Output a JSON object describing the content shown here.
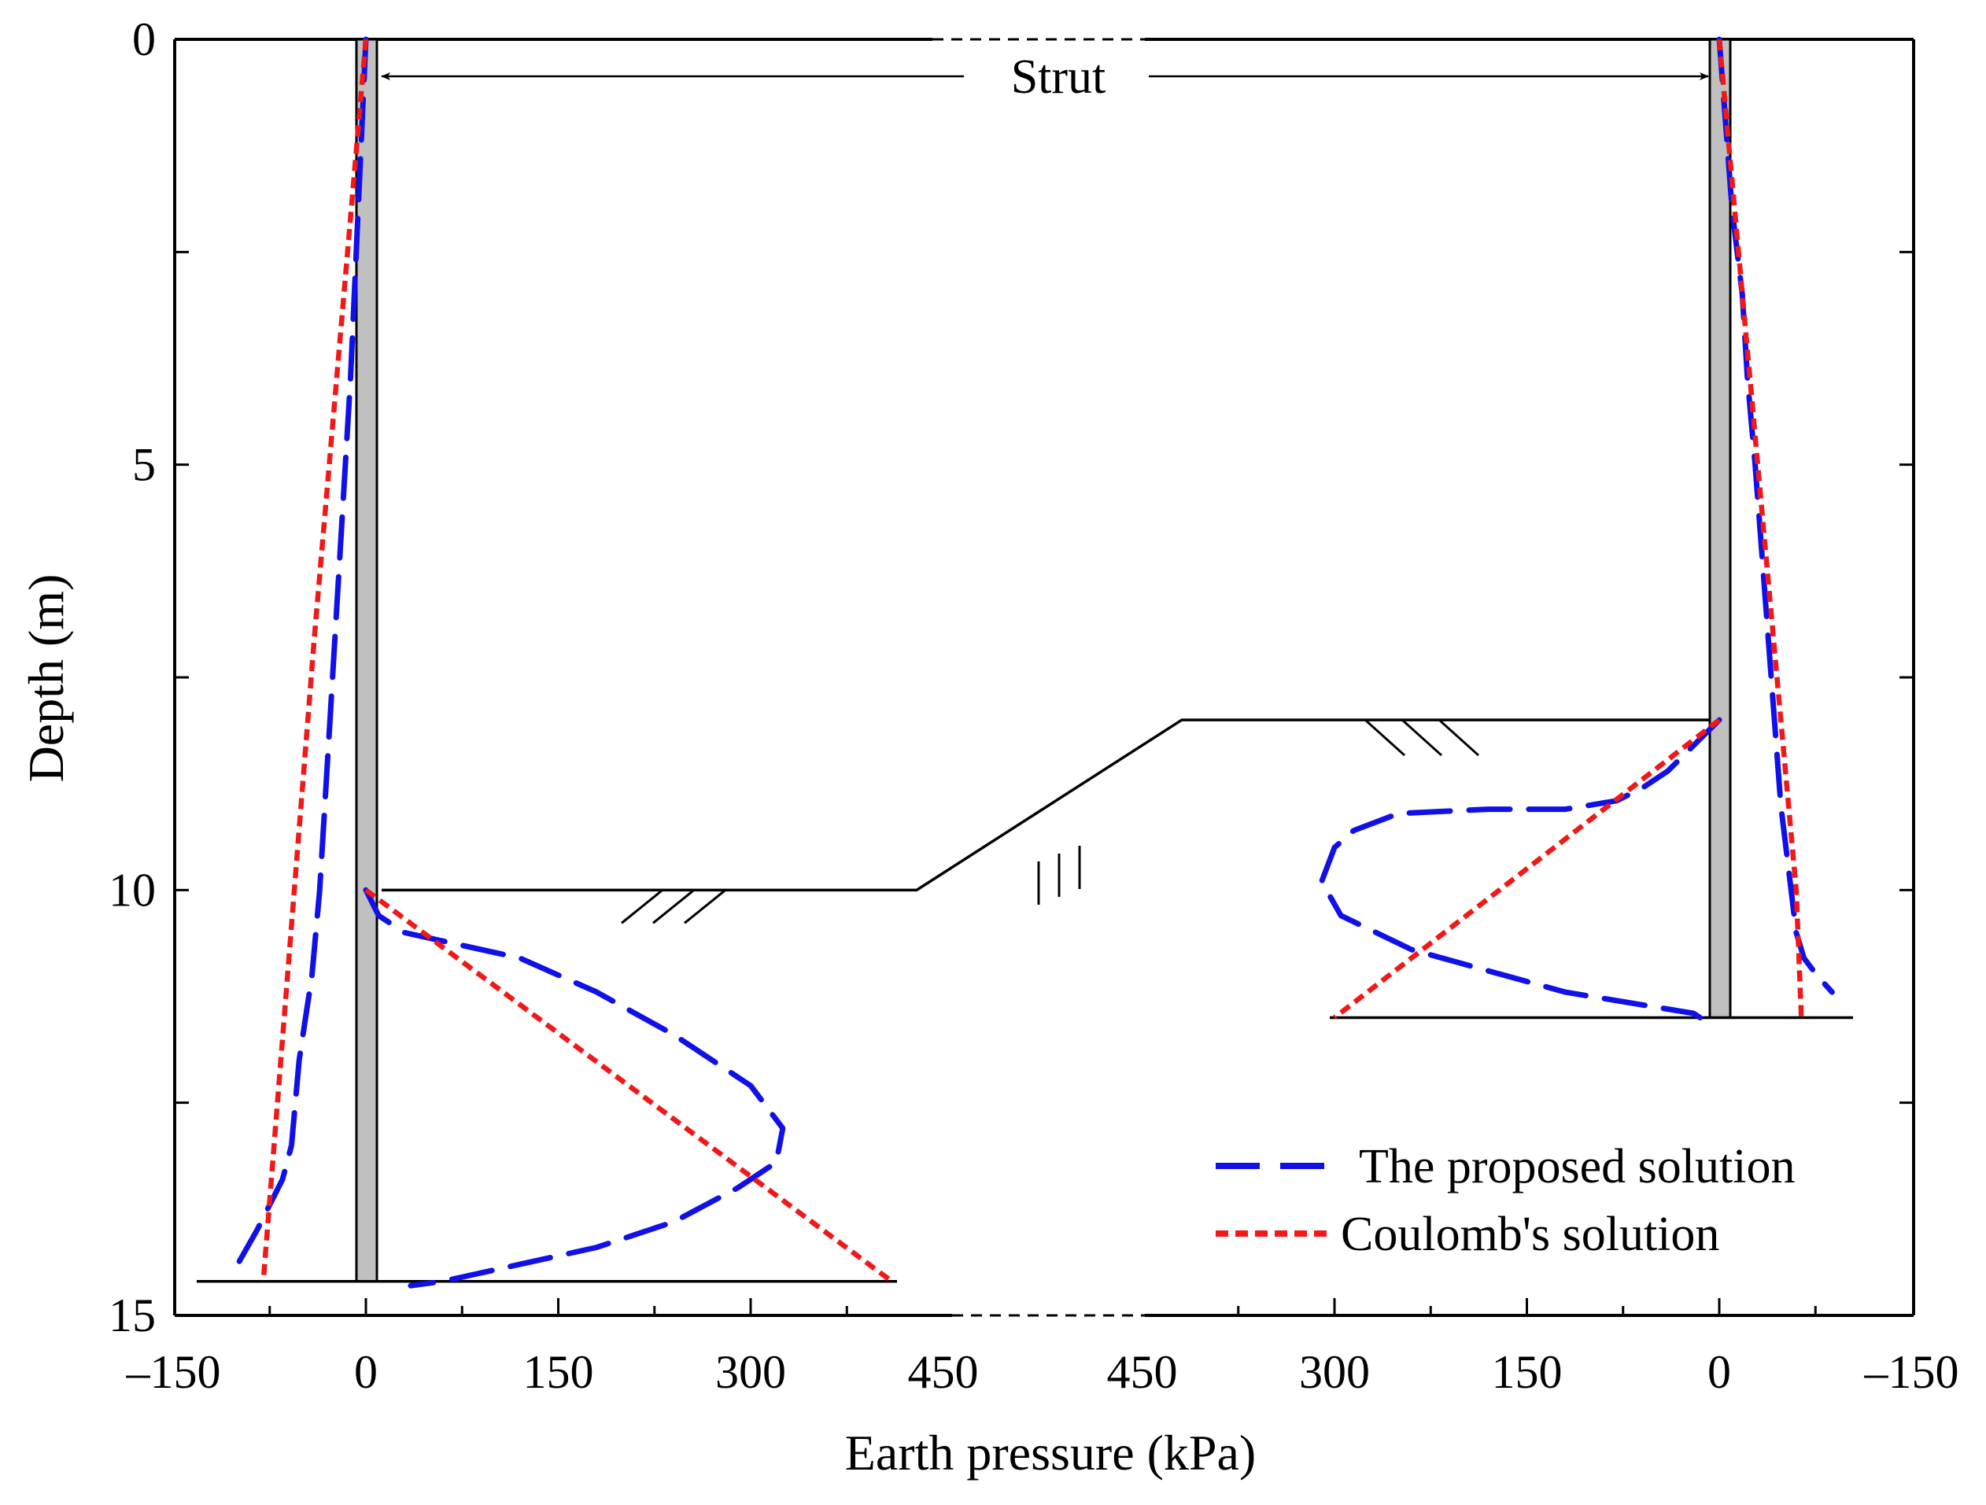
{
  "chart_data": {
    "type": "line",
    "title": "",
    "xlabel": "Earth pressure (kPa)",
    "ylabel": "Depth (m)",
    "ylim": [
      0,
      15
    ],
    "y_ticks": [
      "0",
      "5",
      "10",
      "15"
    ],
    "left_panel": {
      "xlim": [
        -150,
        450
      ],
      "x_ticks": [
        "–150",
        "0",
        "150",
        "300",
        "450"
      ],
      "excavation_depth": 10,
      "wall_depth": 14.6,
      "series": [
        {
          "name": "The proposed solution",
          "segments": [
            {
              "points": [
                [
                  0,
                  0
                ],
                [
                  -3,
                  1
                ],
                [
                  -6,
                  2
                ],
                [
                  -12,
                  4
                ],
                [
                  -20,
                  6
                ],
                [
                  -28,
                  8
                ],
                [
                  -36,
                  10
                ],
                [
                  -42,
                  11
                ],
                [
                  -52,
                  12
                ],
                [
                  -58,
                  13
                ],
                [
                  -65,
                  13.4
                ],
                [
                  -85,
                  14
                ],
                [
                  -100,
                  14.4
                ],
                [
                  -105,
                  14.5
                ]
              ]
            },
            {
              "points": [
                [
                  0,
                  10
                ],
                [
                  10,
                  10.3
                ],
                [
                  30,
                  10.5
                ],
                [
                  60,
                  10.6
                ],
                [
                  120,
                  10.8
                ],
                [
                  180,
                  11.2
                ],
                [
                  240,
                  11.7
                ],
                [
                  300,
                  12.3
                ],
                [
                  325,
                  12.8
                ],
                [
                  320,
                  13.2
                ],
                [
                  290,
                  13.5
                ],
                [
                  240,
                  13.9
                ],
                [
                  180,
                  14.2
                ],
                [
                  120,
                  14.4
                ],
                [
                  60,
                  14.6
                ],
                [
                  35,
                  14.65
                ]
              ]
            }
          ]
        },
        {
          "name": "Coulomb's solution",
          "segments": [
            {
              "points": [
                [
                  0,
                  0
                ],
                [
                  -40,
                  7
                ],
                [
                  -80,
                  14.6
                ]
              ]
            },
            {
              "points": [
                [
                  0,
                  10
                ],
                [
                  410,
                  14.6
                ]
              ]
            }
          ]
        }
      ]
    },
    "right_panel": {
      "xlim": [
        450,
        -150
      ],
      "x_ticks": [
        "450",
        "300",
        "150",
        "0",
        "–150"
      ],
      "excavation_depth": 8,
      "wall_depth": 11.5,
      "series": [
        {
          "name": "The proposed solution",
          "segments": [
            {
              "points": [
                [
                  0,
                  0
                ],
                [
                  -5,
                  1
                ],
                [
                  -10,
                  2
                ],
                [
                  -18,
                  3
                ],
                [
                  -22,
                  4
                ],
                [
                  -28,
                  5
                ],
                [
                  -33,
                  6
                ],
                [
                  -38,
                  7
                ],
                [
                  -43,
                  8
                ],
                [
                  -48,
                  9
                ],
                [
                  -56,
                  10
                ],
                [
                  -60,
                  10.5
                ],
                [
                  -66,
                  10.8
                ],
                [
                  -76,
                  11
                ],
                [
                  -88,
                  11.2
                ]
              ]
            },
            {
              "points": [
                [
                  0,
                  8
                ],
                [
                  20,
                  8.3
                ],
                [
                  40,
                  8.6
                ],
                [
                  60,
                  8.8
                ],
                [
                  80,
                  8.95
                ],
                [
                  120,
                  9.05
                ],
                [
                  180,
                  9.05
                ],
                [
                  250,
                  9.1
                ],
                [
                  285,
                  9.3
                ],
                [
                  300,
                  9.5
                ],
                [
                  310,
                  9.9
                ],
                [
                  295,
                  10.3
                ],
                [
                  240,
                  10.7
                ],
                [
                  180,
                  10.95
                ],
                [
                  120,
                  11.2
                ],
                [
                  60,
                  11.35
                ],
                [
                  20,
                  11.45
                ],
                [
                  15,
                  11.5
                ]
              ]
            }
          ]
        },
        {
          "name": "Coulomb's solution",
          "segments": [
            {
              "points": [
                [
                  0,
                  0
                ],
                [
                  -30,
                  5
                ],
                [
                  -60,
                  10
                ],
                [
                  -64,
                  11.5
                ]
              ]
            },
            {
              "points": [
                [
                  0,
                  8
                ],
                [
                  300,
                  11.5
                ]
              ]
            }
          ]
        }
      ]
    },
    "annotations": [
      "Strut"
    ],
    "legend": {
      "position": "bottom-right",
      "entries": [
        "The proposed solution",
        "Coulomb's solution"
      ]
    },
    "colors": {
      "proposed": "#1010e8",
      "coulomb": "#f01818",
      "wall": "#c0c0c0"
    }
  }
}
